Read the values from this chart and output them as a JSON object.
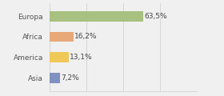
{
  "categories": [
    "Europa",
    "Africa",
    "America",
    "Asia"
  ],
  "values": [
    63.5,
    16.2,
    13.1,
    7.2
  ],
  "labels": [
    "63,5%",
    "16,2%",
    "13,1%",
    "7,2%"
  ],
  "bar_colors": [
    "#a8c080",
    "#e8a878",
    "#f0c858",
    "#8090c0"
  ],
  "background_color": "#f0f0f0",
  "xlim": [
    0,
    100
  ],
  "label_fontsize": 6.5,
  "category_fontsize": 6.5,
  "bar_height": 0.5
}
